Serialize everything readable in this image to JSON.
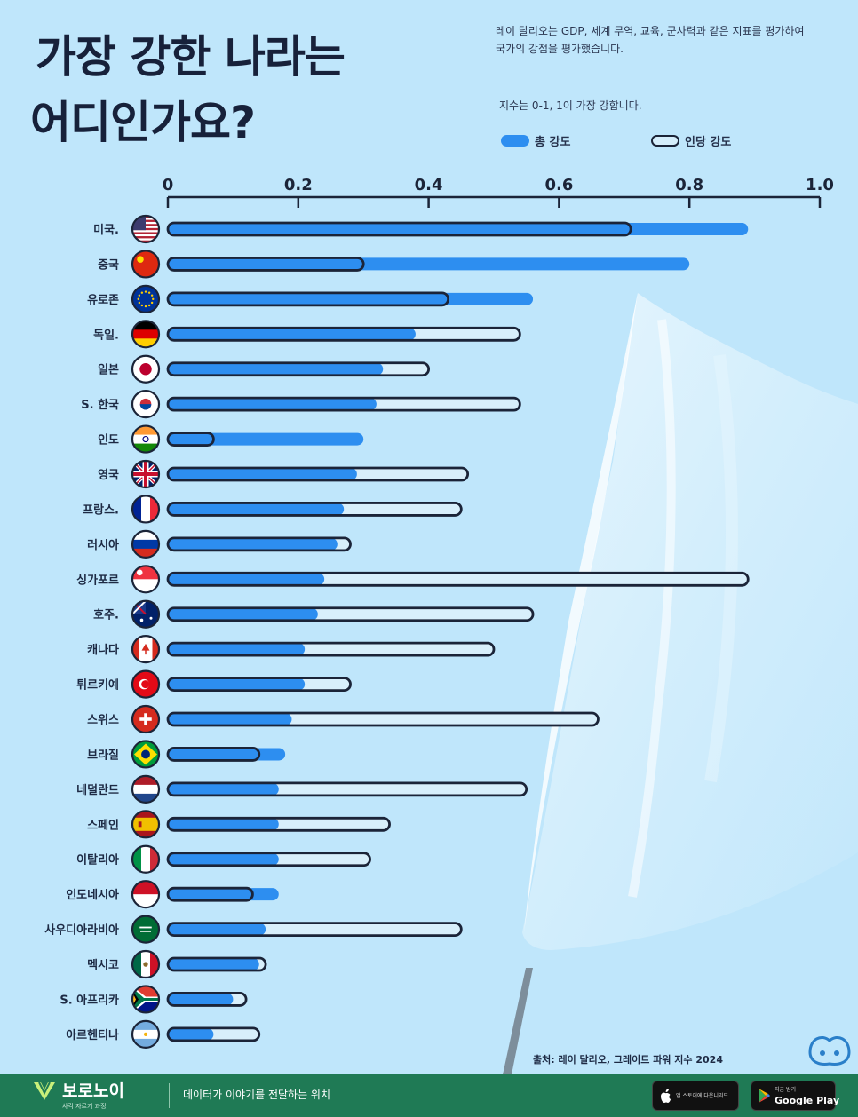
{
  "header": {
    "title_line1": "가장 강한 나라는",
    "title_line2": "어디인가요?",
    "description_line1": "레이 달리오는 GDP, 세계 무역, 교육, 군사력과 같은 지표를 평가하여",
    "description_line2": "국가의 강점을 평가했습니다.",
    "scale_note": "지수는 0-1, 1이 가장 강합니다."
  },
  "legend": {
    "total_label": "총 강도",
    "per_capita_label": "인당 강도"
  },
  "colors": {
    "total_bar": "#2d8ef0",
    "per_capita_outline": "#1b2438",
    "background": "#bfe6fb",
    "footer": "#1f7a55"
  },
  "chart_data": {
    "type": "bar",
    "orientation": "horizontal",
    "xlim": [
      0,
      1.0
    ],
    "x_ticks": [
      "0",
      "0.2",
      "0.4",
      "0.6",
      "0.8",
      "1.0"
    ],
    "categories": [
      "미국.",
      "중국",
      "유로존",
      "독일.",
      "일본",
      "S. 한국",
      "인도",
      "영국",
      "프랑스.",
      "러시아",
      "싱가포르",
      "호주.",
      "캐나다",
      "튀르키예",
      "스위스",
      "브라질",
      "네덜란드",
      "스페인",
      "이탈리아",
      "인도네시아",
      "사우디아라비아",
      "멕시코",
      "S. 아프리카",
      "아르헨티나"
    ],
    "flag_icons": [
      "usa-flag-icon",
      "china-flag-icon",
      "eurozone-flag-icon",
      "germany-flag-icon",
      "japan-flag-icon",
      "south-korea-flag-icon",
      "india-flag-icon",
      "uk-flag-icon",
      "france-flag-icon",
      "russia-flag-icon",
      "singapore-flag-icon",
      "australia-flag-icon",
      "canada-flag-icon",
      "turkiye-flag-icon",
      "switzerland-flag-icon",
      "brazil-flag-icon",
      "netherlands-flag-icon",
      "spain-flag-icon",
      "italy-flag-icon",
      "indonesia-flag-icon",
      "saudi-arabia-flag-icon",
      "mexico-flag-icon",
      "south-africa-flag-icon",
      "argentina-flag-icon"
    ],
    "series": [
      {
        "name": "총 강도",
        "values": [
          0.89,
          0.8,
          0.56,
          0.38,
          0.33,
          0.32,
          0.3,
          0.29,
          0.27,
          0.26,
          0.24,
          0.23,
          0.21,
          0.21,
          0.19,
          0.18,
          0.17,
          0.17,
          0.17,
          0.17,
          0.15,
          0.14,
          0.1,
          0.07
        ]
      },
      {
        "name": "인당 강도",
        "values": [
          0.71,
          0.3,
          0.43,
          0.54,
          0.4,
          0.54,
          0.07,
          0.46,
          0.45,
          0.28,
          0.89,
          0.56,
          0.5,
          0.28,
          0.66,
          0.14,
          0.55,
          0.34,
          0.31,
          0.13,
          0.45,
          0.15,
          0.12,
          0.14
        ]
      }
    ]
  },
  "source": "출처: 레이 달리오, 그레이트 파워 지수 2024",
  "footer": {
    "brand_name": "보로노이",
    "brand_sub": "사각 자르기 과정",
    "tagline": "데이터가 이야기를 전달하는 위치",
    "appstore_small": "앱 스토어에 다운니리드",
    "googleplay_small": "지금 받기",
    "googleplay_big": "Google Play"
  }
}
